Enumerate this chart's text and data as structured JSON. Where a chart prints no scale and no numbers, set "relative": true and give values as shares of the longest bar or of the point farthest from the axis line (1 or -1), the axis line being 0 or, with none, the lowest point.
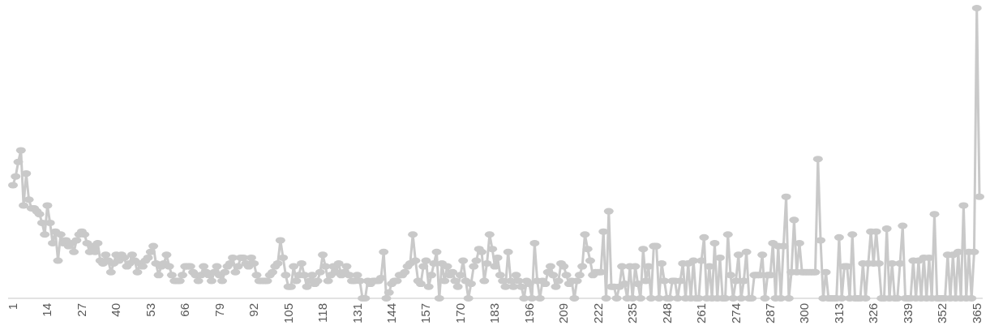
{
  "chart_data": {
    "type": "line",
    "relative": true,
    "marker": "circle",
    "line_style": "solid",
    "categories": [
      "1",
      null,
      null,
      null,
      null,
      null,
      null,
      null,
      null,
      null,
      null,
      null,
      null,
      "14",
      null,
      null,
      null,
      null,
      null,
      null,
      null,
      null,
      null,
      null,
      null,
      null,
      "27",
      null,
      null,
      null,
      null,
      null,
      null,
      null,
      null,
      null,
      null,
      null,
      null,
      "40",
      null,
      null,
      null,
      null,
      null,
      null,
      null,
      null,
      null,
      null,
      null,
      null,
      "53",
      null,
      null,
      null,
      null,
      null,
      null,
      null,
      null,
      null,
      null,
      null,
      null,
      "66",
      null,
      null,
      null,
      null,
      null,
      null,
      null,
      null,
      null,
      null,
      null,
      null,
      "79",
      null,
      null,
      null,
      null,
      null,
      null,
      null,
      null,
      null,
      null,
      null,
      null,
      "92",
      null,
      null,
      null,
      null,
      null,
      null,
      null,
      null,
      null,
      null,
      null,
      null,
      "105",
      null,
      null,
      null,
      null,
      null,
      null,
      null,
      null,
      null,
      null,
      null,
      null,
      "118",
      null,
      null,
      null,
      null,
      null,
      null,
      null,
      null,
      null,
      null,
      null,
      null,
      "131",
      null,
      null,
      null,
      null,
      null,
      null,
      null,
      null,
      null,
      null,
      null,
      null,
      "144",
      null,
      null,
      null,
      null,
      null,
      null,
      null,
      null,
      null,
      null,
      null,
      null,
      "157",
      null,
      null,
      null,
      null,
      null,
      null,
      null,
      null,
      null,
      null,
      null,
      null,
      "170",
      null,
      null,
      null,
      null,
      null,
      null,
      null,
      null,
      null,
      null,
      null,
      null,
      "183",
      null,
      null,
      null,
      null,
      null,
      null,
      null,
      null,
      null,
      null,
      null,
      null,
      "196",
      null,
      null,
      null,
      null,
      null,
      null,
      null,
      null,
      null,
      null,
      null,
      null,
      "209",
      null,
      null,
      null,
      null,
      null,
      null,
      null,
      null,
      null,
      null,
      null,
      null,
      "222",
      null,
      null,
      null,
      null,
      null,
      null,
      null,
      null,
      null,
      null,
      null,
      null,
      "235",
      null,
      null,
      null,
      null,
      null,
      null,
      null,
      null,
      null,
      null,
      null,
      null,
      "248",
      null,
      null,
      null,
      null,
      null,
      null,
      null,
      null,
      null,
      null,
      null,
      null,
      "261",
      null,
      null,
      null,
      null,
      null,
      null,
      null,
      null,
      null,
      null,
      null,
      null,
      "274",
      null,
      null,
      null,
      null,
      null,
      null,
      null,
      null,
      null,
      null,
      null,
      null,
      "287",
      null,
      null,
      null,
      null,
      null,
      null,
      null,
      null,
      null,
      null,
      null,
      null,
      "300",
      null,
      null,
      null,
      null,
      null,
      null,
      null,
      null,
      null,
      null,
      null,
      null,
      "313",
      null,
      null,
      null,
      null,
      null,
      null,
      null,
      null,
      null,
      null,
      null,
      null,
      "326",
      null,
      null,
      null,
      null,
      null,
      null,
      null,
      null,
      null,
      null,
      null,
      null,
      "339",
      null,
      null,
      null,
      null,
      null,
      null,
      null,
      null,
      null,
      null,
      null,
      null,
      "352",
      null,
      null,
      null,
      null,
      null,
      null,
      null,
      null,
      null,
      null,
      null,
      null,
      "365",
      null
    ],
    "series": [
      {
        "color": "#c9c9c9",
        "values": [
          0.39,
          0.42,
          0.47,
          0.51,
          0.32,
          0.43,
          0.34,
          0.31,
          0.31,
          0.3,
          0.29,
          0.26,
          0.22,
          0.32,
          0.26,
          0.19,
          0.23,
          0.13,
          0.22,
          0.19,
          0.2,
          0.18,
          0.19,
          0.16,
          0.2,
          0.22,
          0.23,
          0.22,
          0.19,
          0.16,
          0.18,
          0.16,
          0.19,
          0.13,
          0.12,
          0.15,
          0.13,
          0.09,
          0.12,
          0.15,
          0.13,
          0.15,
          0.14,
          0.11,
          0.12,
          0.15,
          0.13,
          0.09,
          0.12,
          0.11,
          0.13,
          0.14,
          0.16,
          0.18,
          0.12,
          0.08,
          0.11,
          0.12,
          0.15,
          0.11,
          0.08,
          0.06,
          0.06,
          0.06,
          0.08,
          0.11,
          0.11,
          0.11,
          0.09,
          0.08,
          0.06,
          0.08,
          0.11,
          0.09,
          0.08,
          0.06,
          0.09,
          0.11,
          0.08,
          0.06,
          0.09,
          0.11,
          0.12,
          0.14,
          0.09,
          0.11,
          0.14,
          0.14,
          0.12,
          0.11,
          0.14,
          0.12,
          0.08,
          0.06,
          0.06,
          0.06,
          0.06,
          0.08,
          0.09,
          0.11,
          0.12,
          0.2,
          0.14,
          0.08,
          0.04,
          0.04,
          0.11,
          0.06,
          0.08,
          0.12,
          0.08,
          0.04,
          0.06,
          0.08,
          0.05,
          0.06,
          0.09,
          0.15,
          0.11,
          0.06,
          0.08,
          0.11,
          0.09,
          0.12,
          0.08,
          0.09,
          0.11,
          0.08,
          0.06,
          0.06,
          0.08,
          0.06,
          0,
          0,
          0.06,
          0.05,
          0.06,
          0.06,
          0.06,
          0.07,
          0.16,
          0,
          0.02,
          0.05,
          0.06,
          0.06,
          0.08,
          0.08,
          0.09,
          0.11,
          0.12,
          0.22,
          0.13,
          0.06,
          0.05,
          0.11,
          0.13,
          0.04,
          0.08,
          0.12,
          0.16,
          0,
          0.12,
          0.06,
          0.11,
          0.08,
          0.09,
          0.06,
          0.04,
          0.08,
          0.13,
          0.06,
          0,
          0.05,
          0.11,
          0.13,
          0.17,
          0.16,
          0.06,
          0.12,
          0.22,
          0.17,
          0.11,
          0.14,
          0.08,
          0.06,
          0.04,
          0.16,
          0.06,
          0.04,
          0.08,
          0.06,
          0.04,
          0,
          0.06,
          0.05,
          0,
          0.19,
          0.06,
          0,
          0.06,
          0.05,
          0.09,
          0.11,
          0.08,
          0.04,
          0.06,
          0.12,
          0.11,
          0.08,
          0.05,
          0.06,
          0,
          0.06,
          0.08,
          0.11,
          0.22,
          0.17,
          0.13,
          0.08,
          0.09,
          0.09,
          0.09,
          0.23,
          0,
          0.3,
          0.04,
          0.04,
          0,
          0.04,
          0.11,
          0.05,
          0,
          0.11,
          0,
          0.11,
          0.05,
          0,
          0.17,
          0.06,
          0.11,
          0,
          0.18,
          0.18,
          0,
          0.12,
          0.06,
          0,
          0,
          0.06,
          0.06,
          0,
          0.06,
          0.12,
          0,
          0.12,
          0,
          0.13,
          0,
          0,
          0.13,
          0.21,
          0,
          0.11,
          0,
          0.19,
          0,
          0.14,
          0,
          0,
          0.22,
          0.08,
          0,
          0.06,
          0.15,
          0,
          0.06,
          0.16,
          0,
          0,
          0.08,
          0.08,
          0.08,
          0.15,
          0,
          0.08,
          0.08,
          0.19,
          0,
          0.18,
          0,
          0.18,
          0.35,
          0,
          0.09,
          0.27,
          0.09,
          0.19,
          0.09,
          0.09,
          0.09,
          0.09,
          0.09,
          0.09,
          0.48,
          0.2,
          0,
          0.09,
          0,
          0,
          0,
          0,
          0.21,
          0,
          0.11,
          0.11,
          0,
          0.22,
          0,
          0,
          0,
          0.12,
          0,
          0.12,
          0.23,
          0.12,
          0.23,
          0.12,
          0,
          0,
          0.24,
          0,
          0.12,
          0,
          0,
          0.12,
          0.25,
          0,
          0,
          0,
          0.13,
          0,
          0.13,
          0,
          0.14,
          0,
          0.14,
          0,
          0.29,
          0,
          0,
          0,
          0,
          0.15,
          0,
          0.15,
          0,
          0.16,
          0,
          0.32,
          0,
          0.16,
          0,
          0.16,
          1,
          0.35
        ]
      }
    ]
  }
}
